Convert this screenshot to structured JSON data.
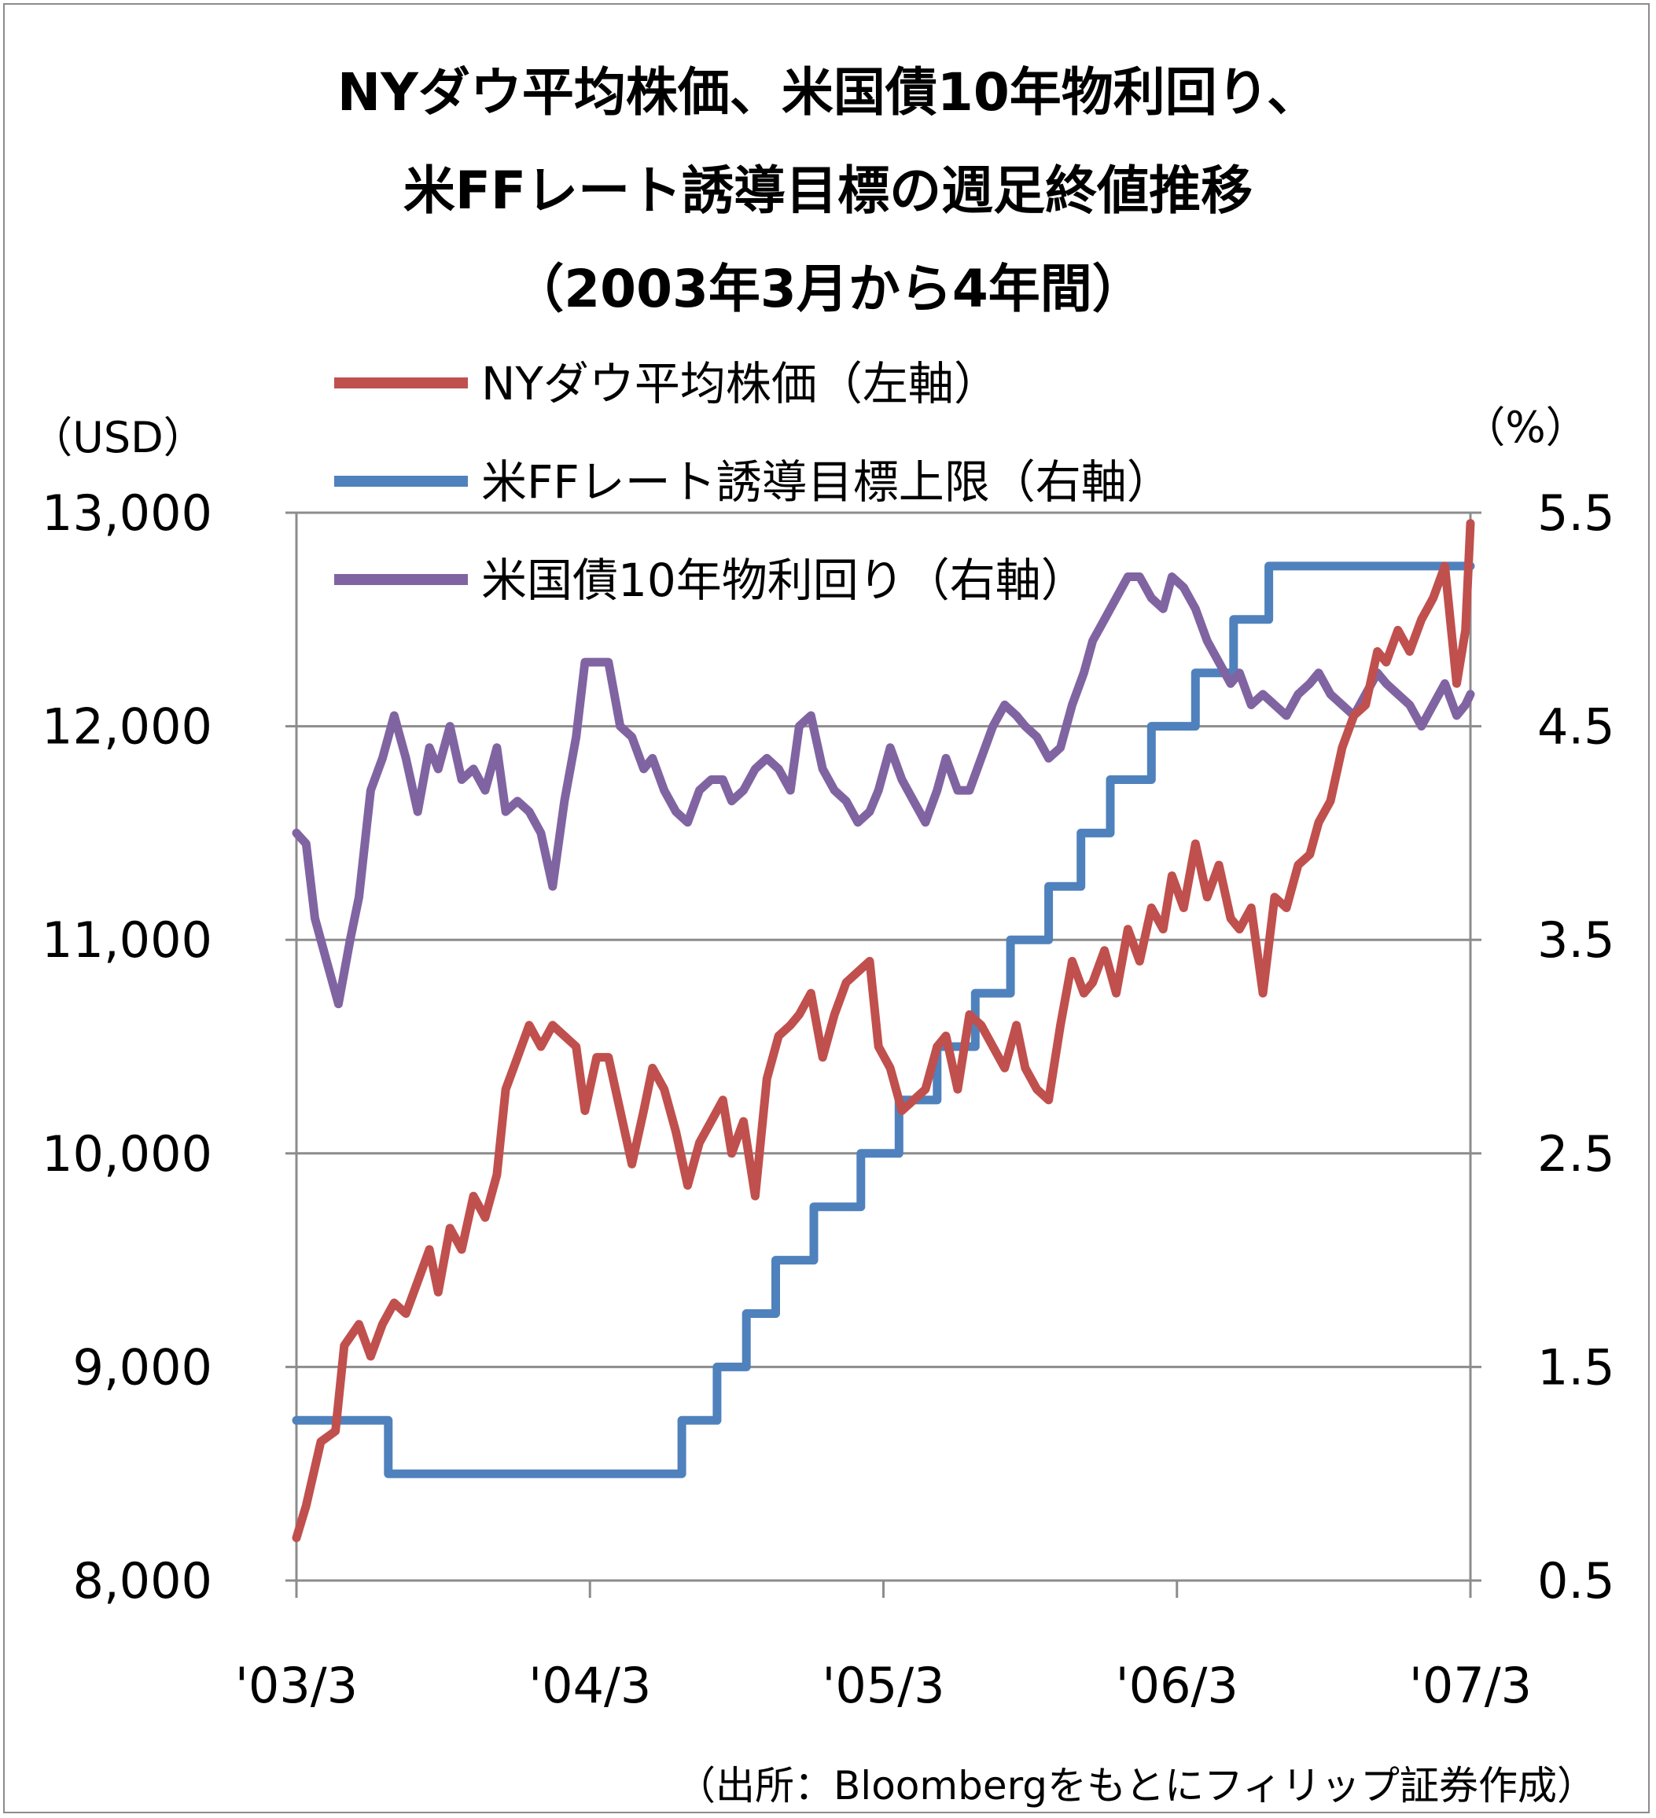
{
  "colors": {
    "dow": "#c0504d",
    "ff": "#4f81bd",
    "ust10": "#8064a2",
    "grid": "#8c8c8c",
    "frame": "#8c8c8c"
  },
  "chart_data": {
    "type": "line",
    "title": [
      "NYダウ平均株価、米国債10年物利回り、",
      "米FFレート誘導目標の週足終値推移",
      "（2003年3月から4年間）"
    ],
    "left_axis": {
      "unit": "（USD）",
      "min": 8000,
      "max": 13000,
      "ticks": [
        "8,000",
        "9,000",
        "10,000",
        "11,000",
        "12,000",
        "13,000"
      ],
      "tick_values": [
        8000,
        9000,
        10000,
        11000,
        12000,
        13000
      ]
    },
    "right_axis": {
      "unit": "（%）",
      "min": 0.5,
      "max": 5.5,
      "ticks": [
        "0.5",
        "1.5",
        "2.5",
        "3.5",
        "4.5",
        "5.5"
      ],
      "tick_values": [
        0.5,
        1.5,
        2.5,
        3.5,
        4.5,
        5.5
      ]
    },
    "x_axis": {
      "min": 2003.167,
      "max": 2007.167,
      "ticks": [
        "'03/3",
        "'04/3",
        "'05/3",
        "'06/3",
        "'07/3"
      ],
      "tick_values": [
        2003.167,
        2004.167,
        2005.167,
        2006.167,
        2007.167
      ]
    },
    "grid": "horizontal",
    "legend_position": "top-center",
    "series": [
      {
        "key": "dow",
        "name": "NYダウ平均株価（左軸）",
        "axis": "left",
        "step": false,
        "points": [
          [
            2003.167,
            8200
          ],
          [
            2003.2,
            8350
          ],
          [
            2003.25,
            8650
          ],
          [
            2003.3,
            8700
          ],
          [
            2003.33,
            9100
          ],
          [
            2003.38,
            9200
          ],
          [
            2003.42,
            9050
          ],
          [
            2003.46,
            9200
          ],
          [
            2003.5,
            9300
          ],
          [
            2003.54,
            9250
          ],
          [
            2003.58,
            9400
          ],
          [
            2003.62,
            9550
          ],
          [
            2003.65,
            9350
          ],
          [
            2003.69,
            9650
          ],
          [
            2003.73,
            9550
          ],
          [
            2003.77,
            9800
          ],
          [
            2003.81,
            9700
          ],
          [
            2003.85,
            9900
          ],
          [
            2003.88,
            10300
          ],
          [
            2003.92,
            10450
          ],
          [
            2003.96,
            10600
          ],
          [
            2004.0,
            10500
          ],
          [
            2004.04,
            10600
          ],
          [
            2004.08,
            10550
          ],
          [
            2004.12,
            10500
          ],
          [
            2004.15,
            10200
          ],
          [
            2004.19,
            10450
          ],
          [
            2004.23,
            10450
          ],
          [
            2004.27,
            10200
          ],
          [
            2004.31,
            9950
          ],
          [
            2004.35,
            10200
          ],
          [
            2004.38,
            10400
          ],
          [
            2004.42,
            10300
          ],
          [
            2004.46,
            10100
          ],
          [
            2004.5,
            9850
          ],
          [
            2004.54,
            10050
          ],
          [
            2004.58,
            10150
          ],
          [
            2004.62,
            10250
          ],
          [
            2004.65,
            10000
          ],
          [
            2004.69,
            10150
          ],
          [
            2004.73,
            9800
          ],
          [
            2004.77,
            10350
          ],
          [
            2004.81,
            10550
          ],
          [
            2004.85,
            10600
          ],
          [
            2004.88,
            10650
          ],
          [
            2004.92,
            10750
          ],
          [
            2004.96,
            10450
          ],
          [
            2005.0,
            10650
          ],
          [
            2005.04,
            10800
          ],
          [
            2005.08,
            10850
          ],
          [
            2005.12,
            10900
          ],
          [
            2005.15,
            10500
          ],
          [
            2005.19,
            10400
          ],
          [
            2005.23,
            10200
          ],
          [
            2005.27,
            10250
          ],
          [
            2005.31,
            10300
          ],
          [
            2005.35,
            10500
          ],
          [
            2005.38,
            10550
          ],
          [
            2005.42,
            10300
          ],
          [
            2005.46,
            10650
          ],
          [
            2005.5,
            10600
          ],
          [
            2005.54,
            10500
          ],
          [
            2005.58,
            10400
          ],
          [
            2005.62,
            10600
          ],
          [
            2005.65,
            10400
          ],
          [
            2005.69,
            10300
          ],
          [
            2005.73,
            10250
          ],
          [
            2005.77,
            10600
          ],
          [
            2005.81,
            10900
          ],
          [
            2005.85,
            10750
          ],
          [
            2005.88,
            10800
          ],
          [
            2005.92,
            10950
          ],
          [
            2005.96,
            10750
          ],
          [
            2006.0,
            11050
          ],
          [
            2006.04,
            10900
          ],
          [
            2006.08,
            11150
          ],
          [
            2006.12,
            11050
          ],
          [
            2006.15,
            11300
          ],
          [
            2006.19,
            11150
          ],
          [
            2006.23,
            11450
          ],
          [
            2006.27,
            11200
          ],
          [
            2006.31,
            11350
          ],
          [
            2006.35,
            11100
          ],
          [
            2006.38,
            11050
          ],
          [
            2006.42,
            11150
          ],
          [
            2006.46,
            10750
          ],
          [
            2006.5,
            11200
          ],
          [
            2006.54,
            11150
          ],
          [
            2006.58,
            11350
          ],
          [
            2006.62,
            11400
          ],
          [
            2006.65,
            11550
          ],
          [
            2006.69,
            11650
          ],
          [
            2006.73,
            11900
          ],
          [
            2006.77,
            12050
          ],
          [
            2006.81,
            12100
          ],
          [
            2006.85,
            12350
          ],
          [
            2006.88,
            12300
          ],
          [
            2006.92,
            12450
          ],
          [
            2006.96,
            12350
          ],
          [
            2007.0,
            12500
          ],
          [
            2007.04,
            12600
          ],
          [
            2007.08,
            12750
          ],
          [
            2007.12,
            12200
          ],
          [
            2007.15,
            12450
          ],
          [
            2007.167,
            12950
          ]
        ]
      },
      {
        "key": "ff",
        "name": "米FFレート誘導目標上限（右軸）",
        "axis": "right",
        "step": true,
        "points": [
          [
            2003.167,
            1.25
          ],
          [
            2003.48,
            1.25
          ],
          [
            2003.48,
            1.0
          ],
          [
            2004.48,
            1.0
          ],
          [
            2004.48,
            1.25
          ],
          [
            2004.6,
            1.25
          ],
          [
            2004.6,
            1.5
          ],
          [
            2004.7,
            1.5
          ],
          [
            2004.7,
            1.75
          ],
          [
            2004.8,
            1.75
          ],
          [
            2004.8,
            2.0
          ],
          [
            2004.93,
            2.0
          ],
          [
            2004.93,
            2.25
          ],
          [
            2005.09,
            2.25
          ],
          [
            2005.09,
            2.5
          ],
          [
            2005.22,
            2.5
          ],
          [
            2005.22,
            2.75
          ],
          [
            2005.35,
            2.75
          ],
          [
            2005.35,
            3.0
          ],
          [
            2005.48,
            3.0
          ],
          [
            2005.48,
            3.25
          ],
          [
            2005.6,
            3.25
          ],
          [
            2005.6,
            3.5
          ],
          [
            2005.73,
            3.5
          ],
          [
            2005.73,
            3.75
          ],
          [
            2005.84,
            3.75
          ],
          [
            2005.84,
            4.0
          ],
          [
            2005.94,
            4.0
          ],
          [
            2005.94,
            4.25
          ],
          [
            2006.08,
            4.25
          ],
          [
            2006.08,
            4.5
          ],
          [
            2006.23,
            4.5
          ],
          [
            2006.23,
            4.75
          ],
          [
            2006.36,
            4.75
          ],
          [
            2006.36,
            5.0
          ],
          [
            2006.48,
            5.0
          ],
          [
            2006.48,
            5.25
          ],
          [
            2007.167,
            5.25
          ]
        ]
      },
      {
        "key": "ust10",
        "name": "米国債10年物利回り（右軸）",
        "axis": "right",
        "step": false,
        "points": [
          [
            2003.167,
            4.0
          ],
          [
            2003.2,
            3.95
          ],
          [
            2003.23,
            3.6
          ],
          [
            2003.27,
            3.4
          ],
          [
            2003.31,
            3.2
          ],
          [
            2003.35,
            3.5
          ],
          [
            2003.38,
            3.7
          ],
          [
            2003.42,
            4.2
          ],
          [
            2003.46,
            4.35
          ],
          [
            2003.5,
            4.55
          ],
          [
            2003.54,
            4.35
          ],
          [
            2003.58,
            4.1
          ],
          [
            2003.62,
            4.4
          ],
          [
            2003.65,
            4.3
          ],
          [
            2003.69,
            4.5
          ],
          [
            2003.73,
            4.25
          ],
          [
            2003.77,
            4.3
          ],
          [
            2003.81,
            4.2
          ],
          [
            2003.85,
            4.4
          ],
          [
            2003.88,
            4.1
          ],
          [
            2003.92,
            4.15
          ],
          [
            2003.96,
            4.1
          ],
          [
            2004.0,
            4.0
          ],
          [
            2004.04,
            3.75
          ],
          [
            2004.08,
            4.15
          ],
          [
            2004.12,
            4.45
          ],
          [
            2004.15,
            4.8
          ],
          [
            2004.19,
            4.8
          ],
          [
            2004.23,
            4.8
          ],
          [
            2004.27,
            4.5
          ],
          [
            2004.31,
            4.45
          ],
          [
            2004.35,
            4.3
          ],
          [
            2004.38,
            4.35
          ],
          [
            2004.42,
            4.2
          ],
          [
            2004.46,
            4.1
          ],
          [
            2004.5,
            4.05
          ],
          [
            2004.54,
            4.2
          ],
          [
            2004.58,
            4.25
          ],
          [
            2004.62,
            4.25
          ],
          [
            2004.65,
            4.15
          ],
          [
            2004.69,
            4.2
          ],
          [
            2004.73,
            4.3
          ],
          [
            2004.77,
            4.35
          ],
          [
            2004.81,
            4.3
          ],
          [
            2004.85,
            4.2
          ],
          [
            2004.88,
            4.5
          ],
          [
            2004.92,
            4.55
          ],
          [
            2004.96,
            4.3
          ],
          [
            2005.0,
            4.2
          ],
          [
            2005.04,
            4.15
          ],
          [
            2005.08,
            4.05
          ],
          [
            2005.12,
            4.1
          ],
          [
            2005.15,
            4.2
          ],
          [
            2005.19,
            4.4
          ],
          [
            2005.23,
            4.25
          ],
          [
            2005.27,
            4.15
          ],
          [
            2005.31,
            4.05
          ],
          [
            2005.35,
            4.2
          ],
          [
            2005.38,
            4.35
          ],
          [
            2005.42,
            4.2
          ],
          [
            2005.46,
            4.2
          ],
          [
            2005.5,
            4.35
          ],
          [
            2005.54,
            4.5
          ],
          [
            2005.58,
            4.6
          ],
          [
            2005.62,
            4.55
          ],
          [
            2005.65,
            4.5
          ],
          [
            2005.69,
            4.45
          ],
          [
            2005.73,
            4.35
          ],
          [
            2005.77,
            4.4
          ],
          [
            2005.81,
            4.6
          ],
          [
            2005.85,
            4.75
          ],
          [
            2005.88,
            4.9
          ],
          [
            2005.92,
            5.0
          ],
          [
            2005.96,
            5.1
          ],
          [
            2006.0,
            5.2
          ],
          [
            2006.04,
            5.2
          ],
          [
            2006.08,
            5.1
          ],
          [
            2006.12,
            5.05
          ],
          [
            2006.15,
            5.2
          ],
          [
            2006.19,
            5.15
          ],
          [
            2006.23,
            5.05
          ],
          [
            2006.27,
            4.9
          ],
          [
            2006.31,
            4.8
          ],
          [
            2006.35,
            4.7
          ],
          [
            2006.38,
            4.75
          ],
          [
            2006.42,
            4.6
          ],
          [
            2006.46,
            4.65
          ],
          [
            2006.5,
            4.6
          ],
          [
            2006.54,
            4.55
          ],
          [
            2006.58,
            4.65
          ],
          [
            2006.62,
            4.7
          ],
          [
            2006.65,
            4.75
          ],
          [
            2006.69,
            4.65
          ],
          [
            2006.73,
            4.6
          ],
          [
            2006.77,
            4.55
          ],
          [
            2006.81,
            4.65
          ],
          [
            2006.85,
            4.75
          ],
          [
            2006.88,
            4.7
          ],
          [
            2006.92,
            4.65
          ],
          [
            2006.96,
            4.6
          ],
          [
            2007.0,
            4.5
          ],
          [
            2007.04,
            4.6
          ],
          [
            2007.08,
            4.7
          ],
          [
            2007.12,
            4.55
          ],
          [
            2007.15,
            4.6
          ],
          [
            2007.167,
            4.65
          ]
        ]
      }
    ],
    "source_note": "（出所：Bloombergをもとにフィリップ証券作成）"
  }
}
